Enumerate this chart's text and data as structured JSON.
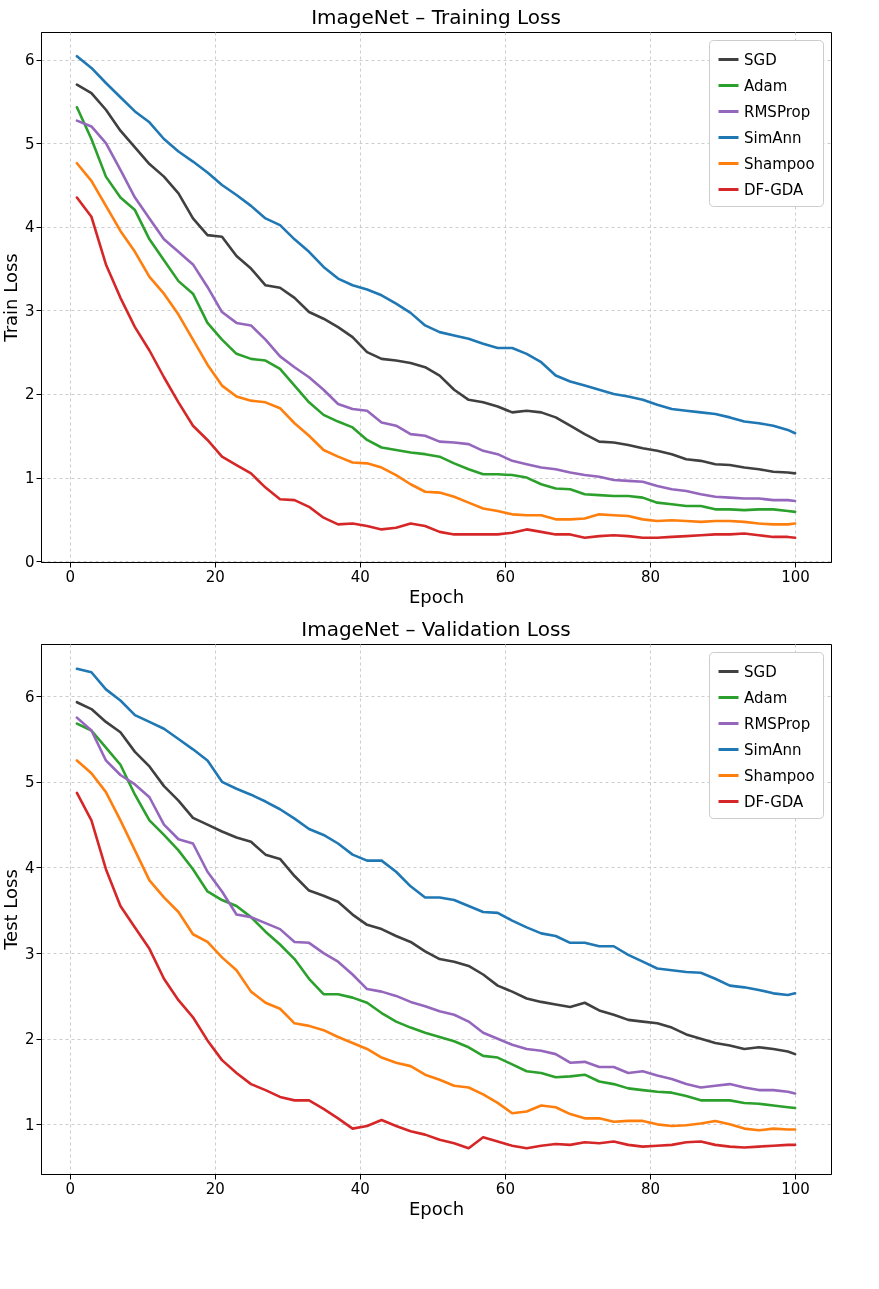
{
  "chart_data": [
    {
      "type": "line",
      "title": "ImageNet – Training Loss",
      "xlabel": "Epoch",
      "ylabel": "Train Loss",
      "x": [
        1,
        3,
        5,
        7,
        9,
        11,
        13,
        15,
        17,
        19,
        21,
        23,
        25,
        27,
        29,
        31,
        33,
        35,
        37,
        39,
        41,
        43,
        45,
        47,
        49,
        51,
        53,
        55,
        57,
        59,
        61,
        63,
        65,
        67,
        69,
        71,
        73,
        75,
        77,
        79,
        81,
        83,
        85,
        87,
        89,
        91,
        93,
        95,
        97,
        99,
        100
      ],
      "xlim": [
        -3.95,
        104.95
      ],
      "xticks": [
        0,
        20,
        40,
        60,
        80,
        100
      ],
      "ylim": [
        -0.01,
        6.33
      ],
      "yticks": [
        0,
        1,
        2,
        3,
        4,
        5,
        6
      ],
      "grid": true,
      "legend": "top right",
      "line_style": "solid",
      "series": [
        {
          "name": "SGD",
          "color": "#404040",
          "values": [
            5.7,
            5.6,
            5.4,
            5.15,
            4.95,
            4.75,
            4.6,
            4.4,
            4.1,
            3.9,
            3.88,
            3.65,
            3.5,
            3.3,
            3.27,
            3.15,
            2.98,
            2.9,
            2.8,
            2.68,
            2.5,
            2.42,
            2.4,
            2.37,
            2.32,
            2.22,
            2.05,
            1.93,
            1.9,
            1.85,
            1.78,
            1.8,
            1.78,
            1.72,
            1.62,
            1.52,
            1.43,
            1.42,
            1.39,
            1.35,
            1.32,
            1.28,
            1.22,
            1.2,
            1.16,
            1.15,
            1.12,
            1.1,
            1.07,
            1.06,
            1.05
          ]
        },
        {
          "name": "Adam",
          "color": "#2ca02c",
          "values": [
            5.43,
            5.05,
            4.6,
            4.35,
            4.2,
            3.85,
            3.6,
            3.35,
            3.2,
            2.85,
            2.65,
            2.48,
            2.42,
            2.4,
            2.3,
            2.1,
            1.9,
            1.75,
            1.67,
            1.6,
            1.45,
            1.36,
            1.33,
            1.3,
            1.28,
            1.25,
            1.17,
            1.1,
            1.04,
            1.04,
            1.03,
            1.0,
            0.92,
            0.87,
            0.86,
            0.8,
            0.79,
            0.78,
            0.78,
            0.76,
            0.7,
            0.68,
            0.66,
            0.66,
            0.62,
            0.62,
            0.61,
            0.62,
            0.62,
            0.6,
            0.59
          ]
        },
        {
          "name": "RMSProp",
          "color": "#9467bd",
          "values": [
            5.27,
            5.2,
            5.0,
            4.68,
            4.35,
            4.1,
            3.85,
            3.7,
            3.55,
            3.28,
            2.98,
            2.85,
            2.82,
            2.65,
            2.45,
            2.32,
            2.2,
            2.05,
            1.88,
            1.82,
            1.8,
            1.66,
            1.62,
            1.52,
            1.5,
            1.43,
            1.42,
            1.4,
            1.32,
            1.28,
            1.2,
            1.16,
            1.12,
            1.1,
            1.06,
            1.03,
            1.01,
            0.97,
            0.96,
            0.95,
            0.9,
            0.86,
            0.84,
            0.8,
            0.77,
            0.76,
            0.75,
            0.75,
            0.73,
            0.73,
            0.72
          ]
        },
        {
          "name": "SimAnn",
          "color": "#1f77b4",
          "values": [
            6.04,
            5.9,
            5.72,
            5.55,
            5.38,
            5.25,
            5.05,
            4.9,
            4.78,
            4.65,
            4.5,
            4.38,
            4.25,
            4.1,
            4.02,
            3.85,
            3.7,
            3.52,
            3.38,
            3.3,
            3.25,
            3.18,
            3.08,
            2.97,
            2.82,
            2.74,
            2.7,
            2.66,
            2.6,
            2.55,
            2.55,
            2.48,
            2.38,
            2.22,
            2.15,
            2.1,
            2.05,
            2.0,
            1.97,
            1.93,
            1.87,
            1.82,
            1.8,
            1.78,
            1.76,
            1.72,
            1.67,
            1.65,
            1.62,
            1.57,
            1.53
          ]
        },
        {
          "name": "Shampoo",
          "color": "#ff7f0e",
          "values": [
            4.76,
            4.55,
            4.25,
            3.95,
            3.7,
            3.4,
            3.2,
            2.95,
            2.65,
            2.35,
            2.1,
            1.97,
            1.92,
            1.9,
            1.83,
            1.65,
            1.5,
            1.33,
            1.25,
            1.18,
            1.17,
            1.12,
            1.03,
            0.92,
            0.83,
            0.82,
            0.77,
            0.7,
            0.63,
            0.6,
            0.56,
            0.55,
            0.55,
            0.5,
            0.5,
            0.51,
            0.56,
            0.55,
            0.54,
            0.5,
            0.48,
            0.49,
            0.48,
            0.47,
            0.48,
            0.48,
            0.47,
            0.45,
            0.44,
            0.44,
            0.45
          ]
        },
        {
          "name": "DF-GDA",
          "color": "#d62728",
          "values": [
            4.35,
            4.12,
            3.55,
            3.15,
            2.8,
            2.52,
            2.2,
            1.9,
            1.62,
            1.45,
            1.25,
            1.15,
            1.05,
            0.88,
            0.74,
            0.73,
            0.65,
            0.52,
            0.44,
            0.45,
            0.42,
            0.38,
            0.4,
            0.45,
            0.42,
            0.35,
            0.32,
            0.32,
            0.32,
            0.32,
            0.34,
            0.38,
            0.35,
            0.32,
            0.32,
            0.28,
            0.3,
            0.31,
            0.3,
            0.28,
            0.28,
            0.29,
            0.3,
            0.31,
            0.32,
            0.32,
            0.33,
            0.31,
            0.29,
            0.29,
            0.28
          ]
        }
      ]
    },
    {
      "type": "line",
      "title": "ImageNet – Validation Loss",
      "xlabel": "Epoch",
      "ylabel": "Test Loss",
      "x": [
        1,
        3,
        5,
        7,
        9,
        11,
        13,
        15,
        17,
        19,
        21,
        23,
        25,
        27,
        29,
        31,
        33,
        35,
        37,
        39,
        41,
        43,
        45,
        47,
        49,
        51,
        53,
        55,
        57,
        59,
        61,
        63,
        65,
        67,
        69,
        71,
        73,
        75,
        77,
        79,
        81,
        83,
        85,
        87,
        89,
        91,
        93,
        95,
        97,
        99,
        100
      ],
      "xlim": [
        -3.95,
        104.95
      ],
      "xticks": [
        0,
        20,
        40,
        60,
        80,
        100
      ],
      "ylim": [
        0.42,
        6.61
      ],
      "yticks": [
        1,
        2,
        3,
        4,
        5,
        6
      ],
      "grid": true,
      "legend": "top right",
      "line_style": "solid",
      "series": [
        {
          "name": "SGD",
          "color": "#404040",
          "values": [
            5.93,
            5.85,
            5.7,
            5.58,
            5.35,
            5.18,
            4.95,
            4.78,
            4.58,
            4.5,
            4.42,
            4.35,
            4.3,
            4.15,
            4.1,
            3.9,
            3.73,
            3.67,
            3.6,
            3.45,
            3.33,
            3.28,
            3.2,
            3.13,
            3.02,
            2.93,
            2.9,
            2.85,
            2.75,
            2.62,
            2.55,
            2.47,
            2.43,
            2.4,
            2.37,
            2.42,
            2.33,
            2.28,
            2.22,
            2.2,
            2.18,
            2.13,
            2.05,
            2.0,
            1.95,
            1.92,
            1.88,
            1.9,
            1.88,
            1.85,
            1.82
          ]
        },
        {
          "name": "Adam",
          "color": "#2ca02c",
          "values": [
            5.68,
            5.6,
            5.4,
            5.2,
            4.85,
            4.55,
            4.38,
            4.2,
            3.98,
            3.72,
            3.62,
            3.55,
            3.42,
            3.25,
            3.1,
            2.93,
            2.7,
            2.52,
            2.52,
            2.48,
            2.42,
            2.3,
            2.2,
            2.13,
            2.07,
            2.02,
            1.97,
            1.9,
            1.8,
            1.78,
            1.7,
            1.62,
            1.6,
            1.55,
            1.56,
            1.58,
            1.5,
            1.47,
            1.42,
            1.4,
            1.38,
            1.37,
            1.33,
            1.28,
            1.28,
            1.28,
            1.25,
            1.24,
            1.22,
            1.2,
            1.19
          ]
        },
        {
          "name": "RMSProp",
          "color": "#9467bd",
          "values": [
            5.75,
            5.6,
            5.25,
            5.08,
            4.97,
            4.82,
            4.5,
            4.33,
            4.28,
            3.95,
            3.72,
            3.45,
            3.42,
            3.35,
            3.28,
            3.13,
            3.12,
            3.0,
            2.9,
            2.75,
            2.58,
            2.55,
            2.5,
            2.43,
            2.38,
            2.32,
            2.28,
            2.2,
            2.07,
            2.0,
            1.93,
            1.88,
            1.86,
            1.82,
            1.72,
            1.73,
            1.67,
            1.67,
            1.6,
            1.62,
            1.57,
            1.53,
            1.47,
            1.43,
            1.45,
            1.47,
            1.43,
            1.4,
            1.4,
            1.38,
            1.36
          ]
        },
        {
          "name": "SimAnn",
          "color": "#1f77b4",
          "values": [
            6.32,
            6.28,
            6.08,
            5.95,
            5.78,
            5.7,
            5.62,
            5.5,
            5.38,
            5.25,
            5.0,
            4.92,
            4.85,
            4.77,
            4.68,
            4.57,
            4.45,
            4.38,
            4.28,
            4.15,
            4.08,
            4.08,
            3.95,
            3.78,
            3.65,
            3.65,
            3.62,
            3.55,
            3.48,
            3.47,
            3.38,
            3.3,
            3.23,
            3.2,
            3.12,
            3.12,
            3.08,
            3.08,
            2.98,
            2.9,
            2.82,
            2.8,
            2.78,
            2.77,
            2.7,
            2.62,
            2.6,
            2.57,
            2.53,
            2.51,
            2.53
          ]
        },
        {
          "name": "Shampoo",
          "color": "#ff7f0e",
          "values": [
            5.25,
            5.1,
            4.88,
            4.55,
            4.2,
            3.85,
            3.65,
            3.48,
            3.22,
            3.13,
            2.95,
            2.8,
            2.55,
            2.42,
            2.35,
            2.18,
            2.15,
            2.1,
            2.02,
            1.95,
            1.88,
            1.78,
            1.72,
            1.68,
            1.58,
            1.52,
            1.45,
            1.43,
            1.35,
            1.25,
            1.13,
            1.15,
            1.22,
            1.2,
            1.12,
            1.07,
            1.07,
            1.03,
            1.04,
            1.04,
            1.0,
            0.98,
            0.99,
            1.01,
            1.04,
            1.0,
            0.95,
            0.93,
            0.95,
            0.94,
            0.94
          ]
        },
        {
          "name": "DF-GDA",
          "color": "#d62728",
          "values": [
            4.87,
            4.55,
            3.98,
            3.55,
            3.3,
            3.05,
            2.7,
            2.45,
            2.25,
            1.98,
            1.75,
            1.6,
            1.47,
            1.4,
            1.32,
            1.28,
            1.28,
            1.18,
            1.07,
            0.95,
            0.98,
            1.05,
            0.98,
            0.92,
            0.88,
            0.82,
            0.78,
            0.72,
            0.85,
            0.8,
            0.75,
            0.72,
            0.75,
            0.77,
            0.76,
            0.79,
            0.78,
            0.8,
            0.76,
            0.74,
            0.75,
            0.76,
            0.79,
            0.8,
            0.76,
            0.74,
            0.73,
            0.74,
            0.75,
            0.76,
            0.76
          ]
        }
      ]
    }
  ]
}
